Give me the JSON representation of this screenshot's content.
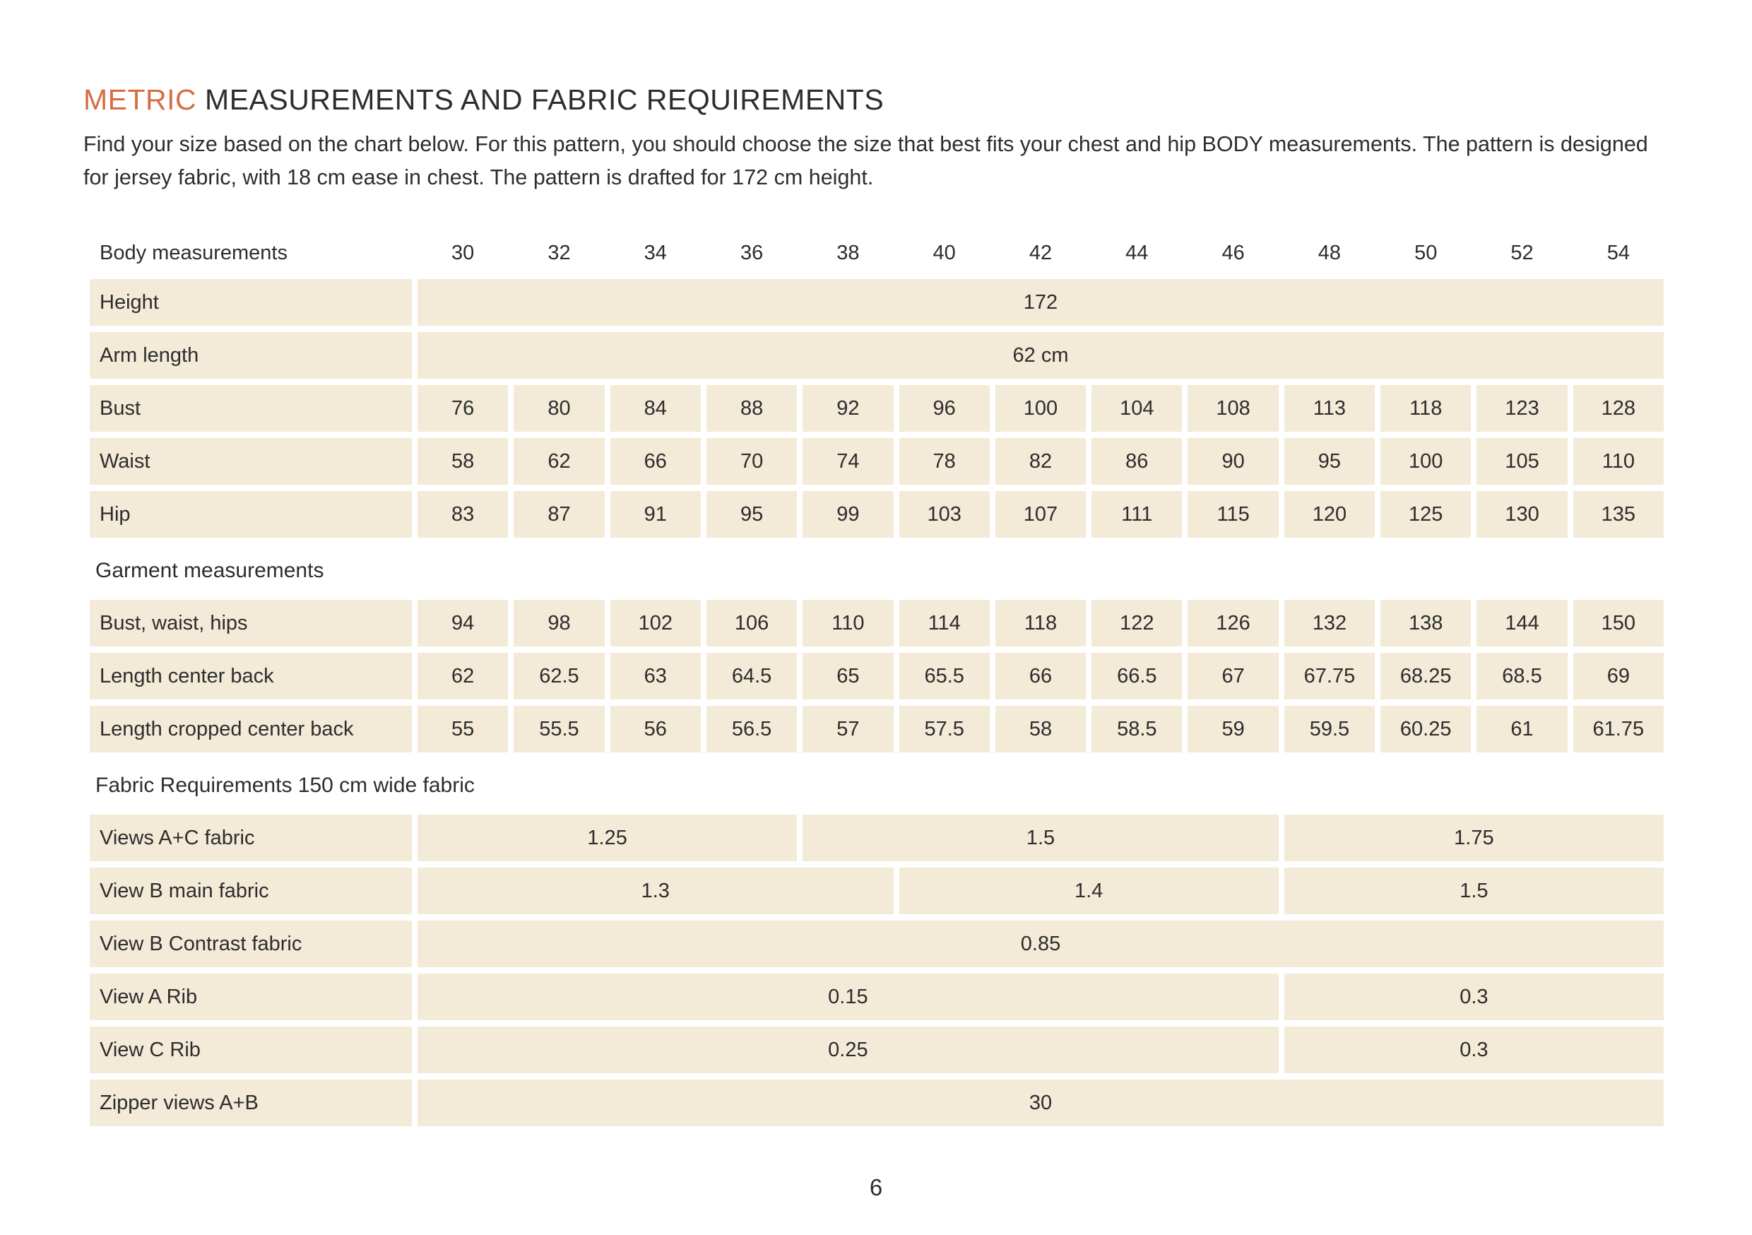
{
  "colors": {
    "accent": "#d56e44",
    "row_bg": "#f3ead7",
    "text": "#2d2d2d"
  },
  "header": {
    "title_accent": "METRIC",
    "title_rest": " MEASUREMENTS AND FABRIC REQUIREMENTS",
    "intro": "Find your size based on the chart below. For this pattern, you should choose the size that best fits your chest and hip BODY measurements. The pattern is designed for jersey fabric, with 18 cm ease in chest. The pattern is drafted for 172 cm height."
  },
  "table": {
    "header_label": "Body measurements",
    "sizes": [
      "30",
      "32",
      "34",
      "36",
      "38",
      "40",
      "42",
      "44",
      "46",
      "48",
      "50",
      "52",
      "54"
    ],
    "sections": [
      {
        "heading": "",
        "rows": [
          {
            "label": "Height",
            "cells": [
              {
                "v": "172",
                "span": 13
              }
            ]
          },
          {
            "label": "Arm length",
            "cells": [
              {
                "v": "62 cm",
                "span": 13
              }
            ]
          },
          {
            "label": "Bust",
            "cells": [
              {
                "v": "76",
                "span": 1
              },
              {
                "v": "80",
                "span": 1
              },
              {
                "v": "84",
                "span": 1
              },
              {
                "v": "88",
                "span": 1
              },
              {
                "v": "92",
                "span": 1
              },
              {
                "v": "96",
                "span": 1
              },
              {
                "v": "100",
                "span": 1
              },
              {
                "v": "104",
                "span": 1
              },
              {
                "v": "108",
                "span": 1
              },
              {
                "v": "113",
                "span": 1
              },
              {
                "v": "118",
                "span": 1
              },
              {
                "v": "123",
                "span": 1
              },
              {
                "v": "128",
                "span": 1
              }
            ]
          },
          {
            "label": "Waist",
            "cells": [
              {
                "v": "58",
                "span": 1
              },
              {
                "v": "62",
                "span": 1
              },
              {
                "v": "66",
                "span": 1
              },
              {
                "v": "70",
                "span": 1
              },
              {
                "v": "74",
                "span": 1
              },
              {
                "v": "78",
                "span": 1
              },
              {
                "v": "82",
                "span": 1
              },
              {
                "v": "86",
                "span": 1
              },
              {
                "v": "90",
                "span": 1
              },
              {
                "v": "95",
                "span": 1
              },
              {
                "v": "100",
                "span": 1
              },
              {
                "v": "105",
                "span": 1
              },
              {
                "v": "110",
                "span": 1
              }
            ]
          },
          {
            "label": "Hip",
            "cells": [
              {
                "v": "83",
                "span": 1
              },
              {
                "v": "87",
                "span": 1
              },
              {
                "v": "91",
                "span": 1
              },
              {
                "v": "95",
                "span": 1
              },
              {
                "v": "99",
                "span": 1
              },
              {
                "v": "103",
                "span": 1
              },
              {
                "v": "107",
                "span": 1
              },
              {
                "v": "111",
                "span": 1
              },
              {
                "v": "115",
                "span": 1
              },
              {
                "v": "120",
                "span": 1
              },
              {
                "v": "125",
                "span": 1
              },
              {
                "v": "130",
                "span": 1
              },
              {
                "v": "135",
                "span": 1
              }
            ]
          }
        ]
      },
      {
        "heading": "Garment measurements",
        "rows": [
          {
            "label": "Bust, waist, hips",
            "cells": [
              {
                "v": "94",
                "span": 1
              },
              {
                "v": "98",
                "span": 1
              },
              {
                "v": "102",
                "span": 1
              },
              {
                "v": "106",
                "span": 1
              },
              {
                "v": "110",
                "span": 1
              },
              {
                "v": "114",
                "span": 1
              },
              {
                "v": "118",
                "span": 1
              },
              {
                "v": "122",
                "span": 1
              },
              {
                "v": "126",
                "span": 1
              },
              {
                "v": "132",
                "span": 1
              },
              {
                "v": "138",
                "span": 1
              },
              {
                "v": "144",
                "span": 1
              },
              {
                "v": "150",
                "span": 1
              }
            ]
          },
          {
            "label": "Length center back",
            "cells": [
              {
                "v": "62",
                "span": 1
              },
              {
                "v": "62.5",
                "span": 1
              },
              {
                "v": "63",
                "span": 1
              },
              {
                "v": "64.5",
                "span": 1
              },
              {
                "v": "65",
                "span": 1
              },
              {
                "v": "65.5",
                "span": 1
              },
              {
                "v": "66",
                "span": 1
              },
              {
                "v": "66.5",
                "span": 1
              },
              {
                "v": "67",
                "span": 1
              },
              {
                "v": "67.75",
                "span": 1
              },
              {
                "v": "68.25",
                "span": 1
              },
              {
                "v": "68.5",
                "span": 1
              },
              {
                "v": "69",
                "span": 1
              }
            ]
          },
          {
            "label": "Length cropped center back",
            "cells": [
              {
                "v": "55",
                "span": 1
              },
              {
                "v": "55.5",
                "span": 1
              },
              {
                "v": "56",
                "span": 1
              },
              {
                "v": "56.5",
                "span": 1
              },
              {
                "v": "57",
                "span": 1
              },
              {
                "v": "57.5",
                "span": 1
              },
              {
                "v": "58",
                "span": 1
              },
              {
                "v": "58.5",
                "span": 1
              },
              {
                "v": "59",
                "span": 1
              },
              {
                "v": "59.5",
                "span": 1
              },
              {
                "v": "60.25",
                "span": 1
              },
              {
                "v": "61",
                "span": 1
              },
              {
                "v": "61.75",
                "span": 1
              }
            ]
          }
        ]
      },
      {
        "heading": "Fabric Requirements 150 cm wide fabric",
        "rows": [
          {
            "label": "Views A+C fabric",
            "cells": [
              {
                "v": "1.25",
                "span": 4
              },
              {
                "v": "1.5",
                "span": 5
              },
              {
                "v": "1.75",
                "span": 4
              }
            ]
          },
          {
            "label": "View B main fabric",
            "cells": [
              {
                "v": "1.3",
                "span": 5
              },
              {
                "v": "1.4",
                "span": 4
              },
              {
                "v": "1.5",
                "span": 4
              }
            ]
          },
          {
            "label": "View B Contrast fabric",
            "cells": [
              {
                "v": "0.85",
                "span": 13
              }
            ]
          },
          {
            "label": "View A  Rib",
            "cells": [
              {
                "v": "0.15",
                "span": 9
              },
              {
                "v": "0.3",
                "span": 4
              }
            ]
          },
          {
            "label": "View C Rib",
            "cells": [
              {
                "v": "0.25",
                "span": 9
              },
              {
                "v": "0.3",
                "span": 4
              }
            ]
          },
          {
            "label": "Zipper views A+B",
            "cells": [
              {
                "v": "30",
                "span": 13
              }
            ]
          }
        ]
      }
    ]
  },
  "footer": {
    "page_number": "6"
  }
}
